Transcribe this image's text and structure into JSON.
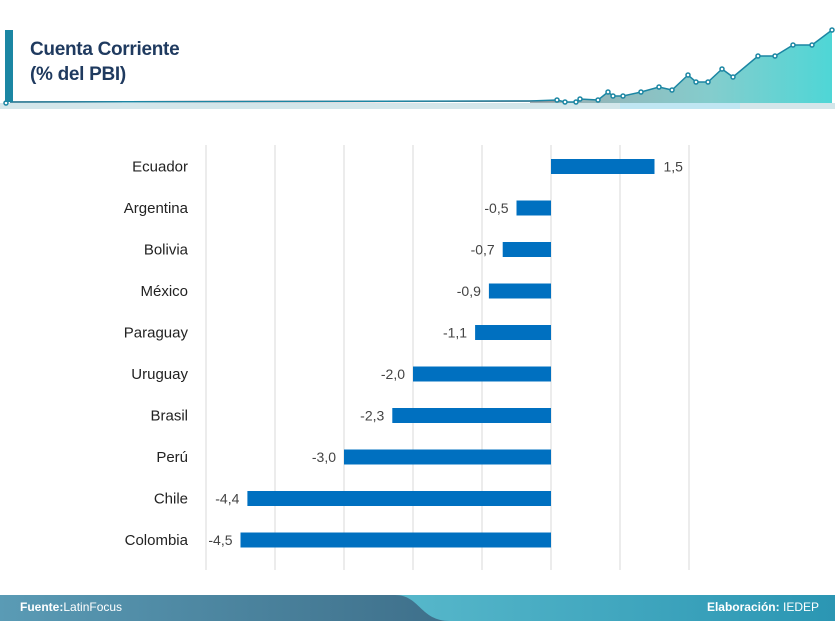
{
  "header": {
    "title_line1": "Cuenta Corriente",
    "title_line2": "(% del PBI)",
    "accent_color": "#1b86a3"
  },
  "footer": {
    "source_label": "Fuente:",
    "source_value": "LatinFocus",
    "credit_label": "Elaboración:",
    "credit_value": "IEDEP"
  },
  "chart_data": {
    "type": "bar",
    "orientation": "horizontal",
    "title": "Cuenta Corriente (% del PBI)",
    "categories": [
      "Ecuador",
      "Argentina",
      "Bolivia",
      "México",
      "Paraguay",
      "Uruguay",
      "Brasil",
      "Perú",
      "Chile",
      "Colombia"
    ],
    "values": [
      1.5,
      -0.5,
      -0.7,
      -0.9,
      -1.1,
      -2.0,
      -2.3,
      -3.0,
      -4.4,
      -4.5
    ],
    "value_labels": [
      "1,5",
      "-0,5",
      "-0,7",
      "-0,9",
      "-1,1",
      "-2,0",
      "-2,3",
      "-3,0",
      "-4,4",
      "-4,5"
    ],
    "xlim": [
      -5,
      2
    ],
    "grid_step": 1,
    "grid": true,
    "bar_color": "#0070c0",
    "xlabel": "",
    "ylabel": ""
  }
}
